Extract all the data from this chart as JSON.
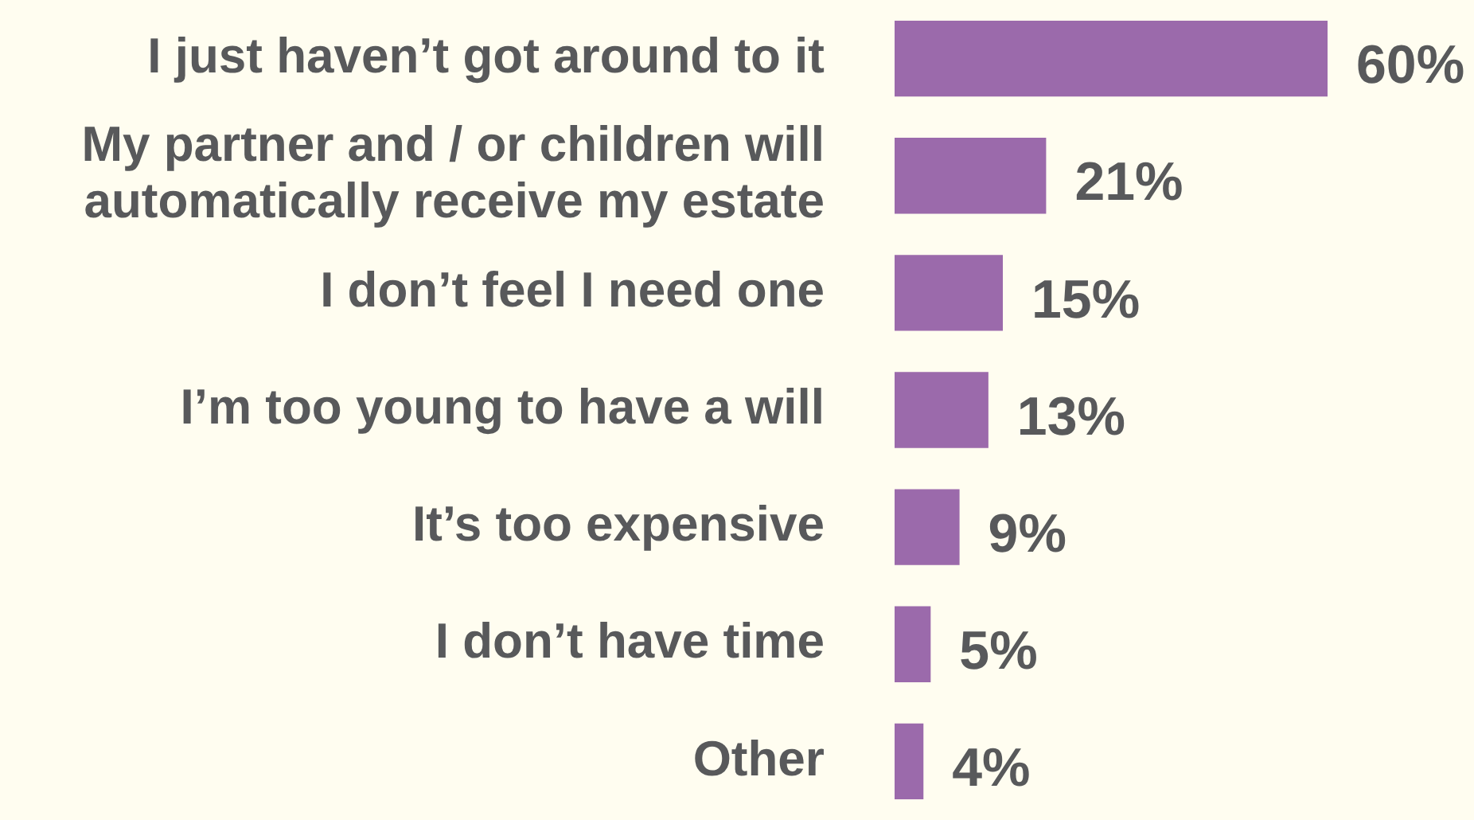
{
  "chart_data": {
    "type": "bar",
    "orientation": "horizontal",
    "categories": [
      "I just haven’t got around to it",
      "My partner and / or children will automatically receive my estate",
      "I don’t feel I need one",
      "I’m too young to have a will",
      "It’s too expensive",
      "I don’t have time",
      "Other"
    ],
    "values": [
      60,
      21,
      15,
      13,
      9,
      5,
      4
    ],
    "value_labels": [
      "60%",
      "21%",
      "15%",
      "13%",
      "9%",
      "5%",
      "4%"
    ],
    "color": "#9b6aab",
    "xlim": [
      0,
      60
    ],
    "tick_labels": "y",
    "legend": false
  }
}
